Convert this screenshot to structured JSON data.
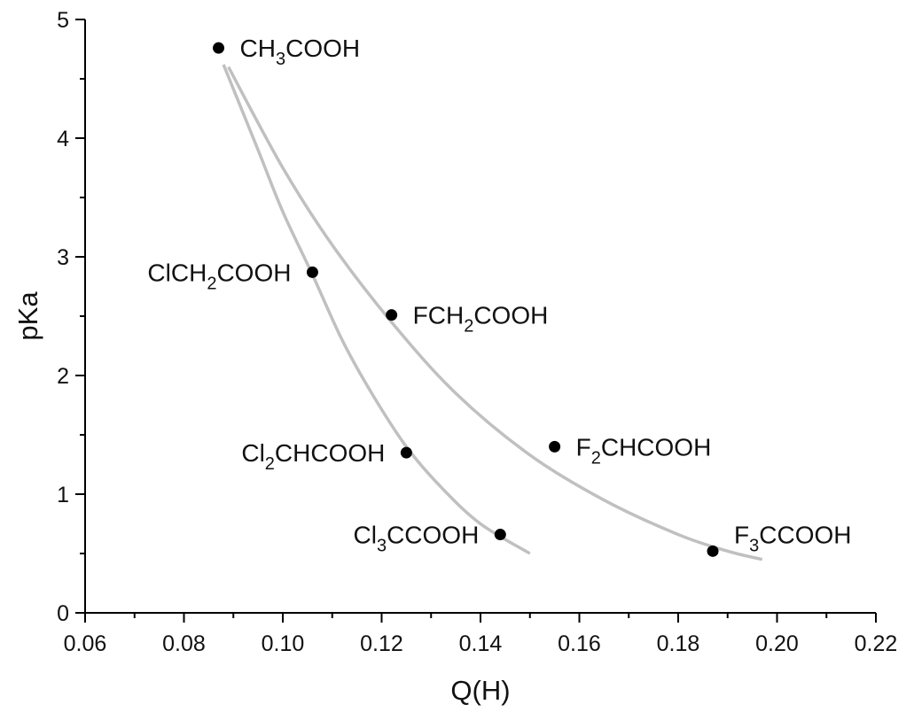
{
  "chart_data": {
    "type": "scatter",
    "title": "",
    "xlabel": "Q(H)",
    "ylabel": "pKa",
    "xlim": [
      0.06,
      0.22
    ],
    "ylim": [
      0,
      5
    ],
    "x_ticks": [
      "0.06",
      "0.08",
      "0.10",
      "0.12",
      "0.14",
      "0.16",
      "0.18",
      "0.20",
      "0.22"
    ],
    "y_ticks": [
      "0",
      "1",
      "2",
      "3",
      "4",
      "5"
    ],
    "grid": false,
    "colors": {
      "points": "#000000",
      "fit": "#c0c0c0"
    },
    "points": [
      {
        "name": "CH3COOH",
        "label": [
          {
            "t": "CH"
          },
          {
            "t": "3",
            "sub": true
          },
          {
            "t": "COOH"
          }
        ],
        "x": 0.087,
        "y": 4.76,
        "label_side": "right"
      },
      {
        "name": "ClCH2COOH",
        "label": [
          {
            "t": "ClCH"
          },
          {
            "t": "2",
            "sub": true
          },
          {
            "t": "COOH"
          }
        ],
        "x": 0.106,
        "y": 2.87,
        "label_side": "left"
      },
      {
        "name": "FCH2COOH",
        "label": [
          {
            "t": "FCH"
          },
          {
            "t": "2",
            "sub": true
          },
          {
            "t": "COOH"
          }
        ],
        "x": 0.122,
        "y": 2.51,
        "label_side": "right"
      },
      {
        "name": "Cl2CHCOOH",
        "label": [
          {
            "t": "Cl"
          },
          {
            "t": "2",
            "sub": true
          },
          {
            "t": "CHCOOH"
          }
        ],
        "x": 0.125,
        "y": 1.35,
        "label_side": "left"
      },
      {
        "name": "Cl3CCOOH",
        "label": [
          {
            "t": "Cl"
          },
          {
            "t": "3",
            "sub": true
          },
          {
            "t": "CCOOH"
          }
        ],
        "x": 0.144,
        "y": 0.66,
        "label_side": "left"
      },
      {
        "name": "F2CHCOOH",
        "label": [
          {
            "t": "F"
          },
          {
            "t": "2",
            "sub": true
          },
          {
            "t": "CHCOOH"
          }
        ],
        "x": 0.155,
        "y": 1.4,
        "label_side": "right"
      },
      {
        "name": "F3CCOOH",
        "label": [
          {
            "t": "F"
          },
          {
            "t": "3",
            "sub": true
          },
          {
            "t": "CCOOH"
          }
        ],
        "x": 0.187,
        "y": 0.52,
        "label_side": "right-up"
      }
    ],
    "fit_curves": [
      {
        "name": "chloro-fit",
        "x": [
          0.088,
          0.095,
          0.1,
          0.106,
          0.112,
          0.118,
          0.125,
          0.132,
          0.14,
          0.15
        ],
        "y": [
          4.62,
          3.9,
          3.38,
          2.85,
          2.3,
          1.85,
          1.4,
          1.06,
          0.75,
          0.5
        ]
      },
      {
        "name": "fluoro-fit",
        "x": [
          0.089,
          0.1,
          0.11,
          0.122,
          0.135,
          0.15,
          0.165,
          0.18,
          0.19,
          0.197
        ],
        "y": [
          4.6,
          3.75,
          3.1,
          2.45,
          1.85,
          1.33,
          0.95,
          0.66,
          0.52,
          0.45
        ]
      }
    ]
  }
}
